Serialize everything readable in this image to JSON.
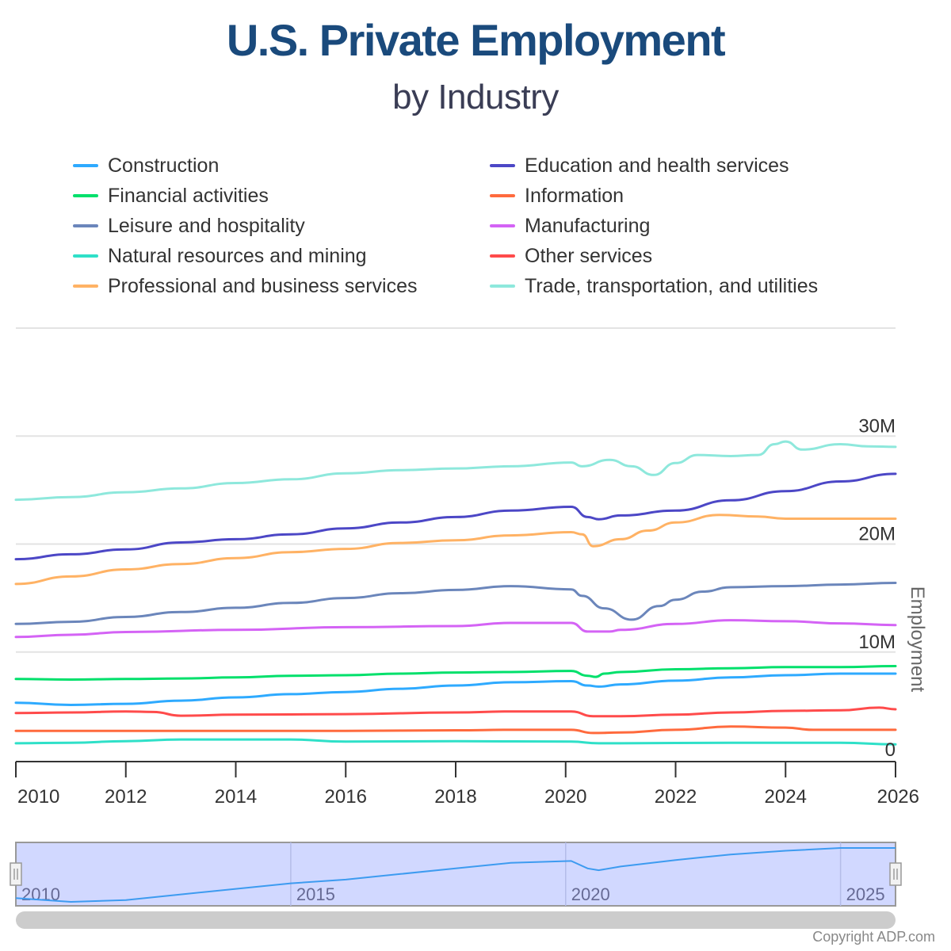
{
  "chart_data": {
    "type": "line",
    "title": "U.S. Private Employment",
    "subtitle": "by Industry",
    "xlabel": "",
    "ylabel": "Employment",
    "xlim": [
      2010,
      2026
    ],
    "ylim": [
      0,
      40000000
    ],
    "x_ticks": [
      "2010",
      "2012",
      "2014",
      "2016",
      "2018",
      "2020",
      "2022",
      "2024",
      "2026"
    ],
    "y_ticks": [
      "0",
      "10M",
      "20M",
      "30M"
    ],
    "y_tick_values": [
      0,
      10,
      20,
      30
    ],
    "y_unit": "millions",
    "y_axis_side": "right",
    "grid": true,
    "legend_position": "top",
    "series": [
      {
        "name": "Construction",
        "color": "#2eaaff",
        "x": [
          2010,
          2011,
          2012,
          2013,
          2014,
          2015,
          2016,
          2017,
          2018,
          2019,
          2020.1,
          2020.4,
          2020.6,
          2021,
          2022,
          2023,
          2024,
          2025,
          2026
        ],
        "values": [
          5.3,
          5.1,
          5.2,
          5.5,
          5.8,
          6.1,
          6.3,
          6.6,
          6.9,
          7.2,
          7.3,
          6.9,
          6.8,
          7.0,
          7.35,
          7.65,
          7.85,
          8.0,
          8.0
        ]
      },
      {
        "name": "Education and health services",
        "color": "#4c47c6",
        "x": [
          2010,
          2011,
          2012,
          2013,
          2014,
          2015,
          2016,
          2017,
          2018,
          2019,
          2020.1,
          2020.4,
          2020.6,
          2021,
          2022,
          2023,
          2024,
          2025,
          2026
        ],
        "values": [
          18.6,
          19.05,
          19.5,
          20.15,
          20.45,
          20.9,
          21.45,
          22.0,
          22.5,
          23.1,
          23.45,
          22.5,
          22.3,
          22.65,
          23.1,
          24.05,
          24.9,
          25.8,
          26.5
        ]
      },
      {
        "name": "Financial activities",
        "color": "#00e06b",
        "x": [
          2010,
          2011,
          2012,
          2013,
          2014,
          2015,
          2016,
          2017,
          2018,
          2019,
          2020.1,
          2020.4,
          2020.55,
          2020.7,
          2021,
          2022,
          2023,
          2024,
          2025,
          2026
        ],
        "values": [
          7.5,
          7.45,
          7.5,
          7.55,
          7.65,
          7.8,
          7.85,
          8.0,
          8.1,
          8.15,
          8.25,
          7.8,
          7.7,
          8.0,
          8.15,
          8.4,
          8.5,
          8.6,
          8.6,
          8.7
        ]
      },
      {
        "name": "Information",
        "color": "#ff6a3d",
        "x": [
          2010,
          2012,
          2014,
          2016,
          2018,
          2019,
          2020.1,
          2020.5,
          2021,
          2022,
          2023,
          2024,
          2024.5,
          2025,
          2026
        ],
        "values": [
          2.7,
          2.7,
          2.7,
          2.7,
          2.75,
          2.8,
          2.8,
          2.5,
          2.55,
          2.8,
          3.1,
          3.0,
          2.8,
          2.8,
          2.8
        ]
      },
      {
        "name": "Leisure and hospitality",
        "color": "#6b86bb",
        "x": [
          2010,
          2011,
          2012,
          2013,
          2014,
          2015,
          2016,
          2017,
          2018,
          2019,
          2020.1,
          2020.3,
          2020.7,
          2021.2,
          2021.7,
          2022,
          2022.5,
          2023,
          2024,
          2025,
          2026
        ],
        "values": [
          12.6,
          12.8,
          13.25,
          13.7,
          14.1,
          14.55,
          15.0,
          15.45,
          15.75,
          16.1,
          15.8,
          15.2,
          14.05,
          13.0,
          14.25,
          14.85,
          15.6,
          16.0,
          16.1,
          16.25,
          16.4
        ]
      },
      {
        "name": "Manufacturing",
        "color": "#d463f5",
        "x": [
          2010,
          2011,
          2012,
          2014,
          2016,
          2018,
          2019,
          2020.1,
          2020.4,
          2020.8,
          2021,
          2022,
          2023,
          2024,
          2025,
          2026
        ],
        "values": [
          11.4,
          11.6,
          11.85,
          12.05,
          12.3,
          12.4,
          12.7,
          12.7,
          11.9,
          11.9,
          12.05,
          12.6,
          12.95,
          12.85,
          12.65,
          12.5
        ]
      },
      {
        "name": "Natural resources and mining",
        "color": "#2fe0c8",
        "x": [
          2010,
          2011,
          2012,
          2013,
          2015,
          2016,
          2018,
          2020.1,
          2020.6,
          2021,
          2023,
          2025,
          2026
        ],
        "values": [
          1.55,
          1.6,
          1.75,
          1.9,
          1.9,
          1.7,
          1.75,
          1.7,
          1.55,
          1.55,
          1.6,
          1.6,
          1.45
        ]
      },
      {
        "name": "Other services",
        "color": "#ff4b4b",
        "x": [
          2010,
          2011,
          2012,
          2012.5,
          2013,
          2014,
          2016,
          2018,
          2019,
          2020.1,
          2020.5,
          2021,
          2022,
          2023,
          2024,
          2025,
          2025.7,
          2026
        ],
        "values": [
          4.35,
          4.4,
          4.5,
          4.45,
          4.1,
          4.2,
          4.25,
          4.4,
          4.5,
          4.5,
          4.05,
          4.05,
          4.2,
          4.4,
          4.55,
          4.6,
          4.85,
          4.7
        ]
      },
      {
        "name": "Professional and business services",
        "color": "#ffb264",
        "x": [
          2010,
          2011,
          2012,
          2013,
          2014,
          2015,
          2016,
          2017,
          2018,
          2019,
          2020.1,
          2020.3,
          2020.5,
          2021,
          2021.5,
          2022,
          2022.8,
          2023.5,
          2024,
          2025,
          2026
        ],
        "values": [
          16.3,
          17.0,
          17.65,
          18.15,
          18.7,
          19.25,
          19.55,
          20.1,
          20.35,
          20.8,
          21.1,
          20.9,
          19.8,
          20.45,
          21.25,
          22.0,
          22.7,
          22.55,
          22.35,
          22.35,
          22.35
        ]
      },
      {
        "name": "Trade, transportation, and utilities",
        "color": "#8ee8dc",
        "x": [
          2010,
          2011,
          2012,
          2013,
          2014,
          2015,
          2016,
          2017,
          2018,
          2019,
          2020.1,
          2020.3,
          2020.8,
          2021.2,
          2021.6,
          2022,
          2022.4,
          2023,
          2023.5,
          2023.8,
          2024,
          2024.3,
          2025,
          2025.5,
          2026
        ],
        "values": [
          24.1,
          24.35,
          24.8,
          25.15,
          25.65,
          26.0,
          26.55,
          26.85,
          27.0,
          27.2,
          27.55,
          27.2,
          27.8,
          27.2,
          26.4,
          27.5,
          28.25,
          28.15,
          28.25,
          29.25,
          29.5,
          28.75,
          29.25,
          29.05,
          29.0
        ]
      }
    ],
    "navigator": {
      "series": "Construction",
      "x_ticks": [
        "2010",
        "2015",
        "2020",
        "2025"
      ],
      "selected_range": [
        2010,
        2026
      ]
    }
  },
  "footer": {
    "copyright": "Copyright ADP.com"
  }
}
